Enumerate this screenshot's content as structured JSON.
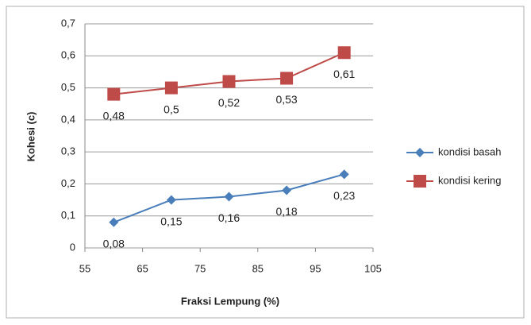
{
  "chart_data": {
    "type": "line",
    "xlabel": "Fraksi Lempung (%)",
    "ylabel": "Kohesi (c)",
    "x": [
      60,
      70,
      80,
      90,
      100
    ],
    "series": [
      {
        "name": "kondisi basah",
        "color": "#4a7ebb",
        "marker": "diamond",
        "values": [
          0.08,
          0.15,
          0.16,
          0.18,
          0.23
        ],
        "value_labels": [
          "0,08",
          "0,15",
          "0,16",
          "0,18",
          "0,23"
        ]
      },
      {
        "name": "kondisi kering",
        "color": "#be4b48",
        "marker": "square",
        "values": [
          0.48,
          0.5,
          0.52,
          0.53,
          0.61
        ],
        "value_labels": [
          "0,48",
          "0,5",
          "0,52",
          "0,53",
          "0,61"
        ]
      }
    ],
    "xlim": [
      55,
      105
    ],
    "xticks": [
      55,
      65,
      75,
      85,
      95,
      105
    ],
    "ylim": [
      0,
      0.7
    ],
    "yticks": [
      0,
      {
        "value": 0.1,
        "label": "0,1"
      },
      {
        "value": 0.2,
        "label": "0,2"
      },
      {
        "value": 0.3,
        "label": "0,3"
      },
      {
        "value": 0.4,
        "label": "0,4"
      },
      {
        "value": 0.5,
        "label": "0,5"
      },
      {
        "value": 0.6,
        "label": "0,6"
      },
      {
        "value": 0.7,
        "label": "0,7"
      }
    ],
    "grid": true,
    "legend": "right"
  }
}
